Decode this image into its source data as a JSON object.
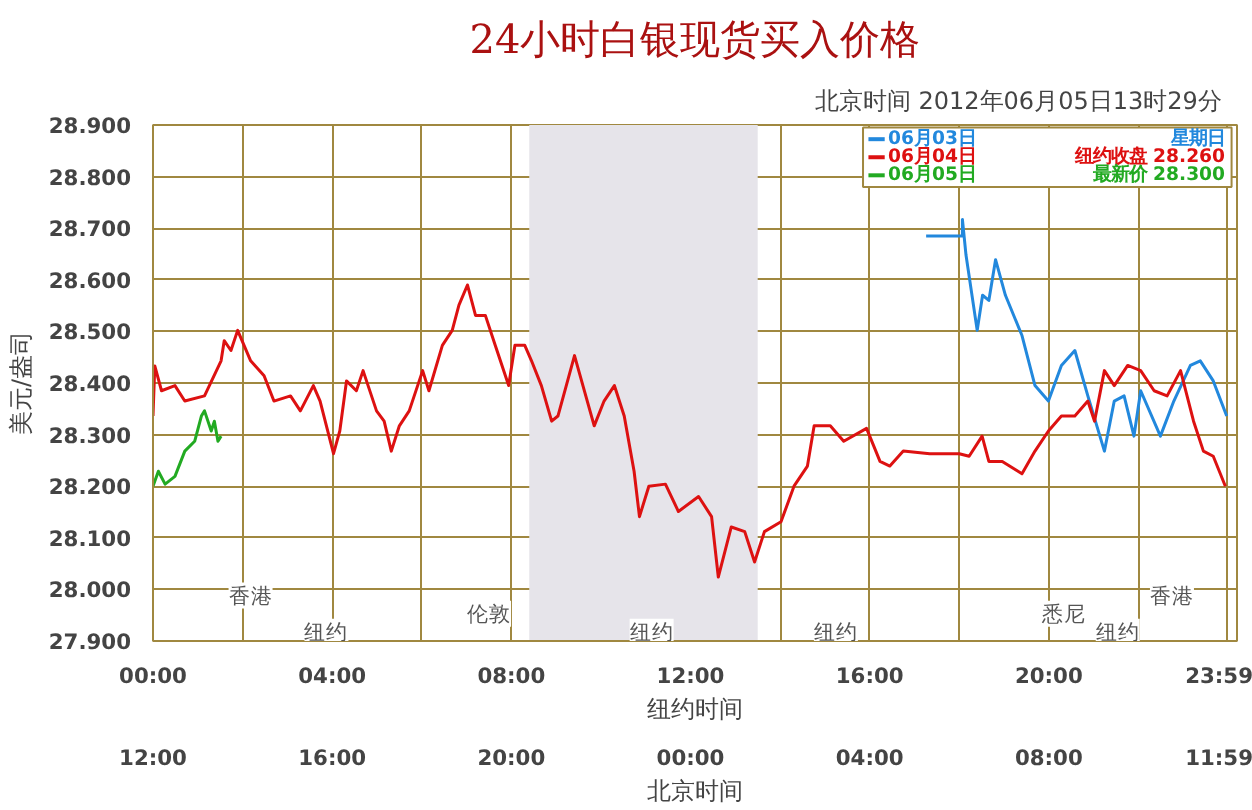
{
  "chart_data": {
    "type": "line",
    "title": "24小时白银现货买入价格",
    "subtitle": "北京时间   2012年06月05日13时29分",
    "ylabel": "美元/盎司",
    "xlabel": "纽约时间",
    "x2label": "北京时间",
    "xlim": [
      0,
      24.2
    ],
    "x2lim": [
      "2012-06-04T12:00",
      "2012-06-05T12:12"
    ],
    "ylim": [
      27.9,
      28.9
    ],
    "xticks": [
      {
        "value": 0,
        "label": "00:00"
      },
      {
        "value": 2,
        "label": null
      },
      {
        "value": 4,
        "label": "04:00"
      },
      {
        "value": 6,
        "label": null
      },
      {
        "value": 8,
        "label": "08:00"
      },
      {
        "value": 10,
        "label": null
      },
      {
        "value": 12,
        "label": "12:00"
      },
      {
        "value": 14,
        "label": null
      },
      {
        "value": 16,
        "label": "16:00"
      },
      {
        "value": 18,
        "label": null
      },
      {
        "value": 20,
        "label": "20:00"
      },
      {
        "value": 22,
        "label": null
      },
      {
        "value": 23.98,
        "label": "23:59"
      }
    ],
    "x2ticks": [
      {
        "value": "2012-06-04T12:00",
        "label": "12:00"
      },
      {
        "value": "2012-06-04T16:00",
        "label": "16:00"
      },
      {
        "value": "2012-06-04T20:00",
        "label": "20:00"
      },
      {
        "value": "2012-06-05T00:00",
        "label": "00:00"
      },
      {
        "value": "2012-06-05T04:00",
        "label": "04:00"
      },
      {
        "value": "2012-06-05T08:00",
        "label": "08:00"
      },
      {
        "value": "2012-06-05T11:59",
        "label": "11:59"
      }
    ],
    "yticks": [
      {
        "value": 27.9,
        "label": "27.900"
      },
      {
        "value": 28.0,
        "label": "28.000"
      },
      {
        "value": 28.1,
        "label": "28.100"
      },
      {
        "value": 28.2,
        "label": "28.200"
      },
      {
        "value": 28.3,
        "label": "28.300"
      },
      {
        "value": 28.4,
        "label": "28.400"
      },
      {
        "value": 28.5,
        "label": "28.500"
      },
      {
        "value": 28.6,
        "label": "28.600"
      },
      {
        "value": 28.7,
        "label": "28.700"
      },
      {
        "value": 28.8,
        "label": "28.800"
      },
      {
        "value": 28.9,
        "label": "28.900"
      }
    ],
    "grid": true,
    "legend": "top right",
    "bands": [
      {
        "axis": "x",
        "from": 8.4,
        "to": 13.5,
        "color": "#e6e4ea"
      }
    ],
    "series": [
      {
        "name": "06月03日",
        "color": "#2288dd",
        "x": [
          17.26,
          18.07,
          18.07,
          18.15,
          18.4,
          18.52,
          18.66,
          18.81,
          19.03,
          19.4,
          19.69,
          19.99,
          20.28,
          20.58,
          20.87,
          21.24,
          21.46,
          21.68,
          21.9,
          22.05,
          22.49,
          22.79,
          23.16,
          23.38,
          23.67,
          23.97
        ],
        "values": [
          28.685,
          28.685,
          28.717,
          28.648,
          28.502,
          28.57,
          28.56,
          28.639,
          28.57,
          28.492,
          28.395,
          28.365,
          28.434,
          28.463,
          28.375,
          28.268,
          28.365,
          28.375,
          28.297,
          28.385,
          28.297,
          28.365,
          28.434,
          28.443,
          28.404,
          28.336
        ]
      },
      {
        "name": "06月04日",
        "color": "#dd1111",
        "x": [
          0,
          0.04,
          0.19,
          0.49,
          0.71,
          1.15,
          1.52,
          1.59,
          1.74,
          1.89,
          2.18,
          2.48,
          2.7,
          3.07,
          3.29,
          3.58,
          3.73,
          4.03,
          4.17,
          4.32,
          4.54,
          4.69,
          4.99,
          5.16,
          5.32,
          5.5,
          5.72,
          6.02,
          6.16,
          6.46,
          6.68,
          6.83,
          7.02,
          7.2,
          7.42,
          7.64,
          7.94,
          8.08,
          8.3,
          8.45,
          8.67,
          8.9,
          9.04,
          9.41,
          9.85,
          10.07,
          10.3,
          10.52,
          10.74,
          10.86,
          11.07,
          11.44,
          11.73,
          12.18,
          12.47,
          12.62,
          12.91,
          13.21,
          13.43,
          13.65,
          14.02,
          14.31,
          14.61,
          14.76,
          15.12,
          15.42,
          15.93,
          16.23,
          16.45,
          16.75,
          17.34,
          18.0,
          18.22,
          18.51,
          18.66,
          18.96,
          19.4,
          19.69,
          19.99,
          20.28,
          20.58,
          20.87,
          21.02,
          21.24,
          21.46,
          21.76,
          22.05,
          22.35,
          22.64,
          22.94,
          23.23,
          23.45,
          23.67,
          23.94
        ],
        "values": [
          28.336,
          28.433,
          28.385,
          28.395,
          28.365,
          28.375,
          28.443,
          28.482,
          28.463,
          28.502,
          28.443,
          28.414,
          28.365,
          28.375,
          28.346,
          28.395,
          28.365,
          28.263,
          28.307,
          28.404,
          28.385,
          28.424,
          28.346,
          28.326,
          28.268,
          28.317,
          28.346,
          28.424,
          28.385,
          28.473,
          28.502,
          28.551,
          28.59,
          28.531,
          28.531,
          28.473,
          28.395,
          28.473,
          28.473,
          28.443,
          28.395,
          28.326,
          28.336,
          28.453,
          28.317,
          28.365,
          28.395,
          28.336,
          28.229,
          28.141,
          28.2,
          28.204,
          28.151,
          28.18,
          28.141,
          28.024,
          28.121,
          28.112,
          28.053,
          28.112,
          28.131,
          28.2,
          28.239,
          28.317,
          28.317,
          28.287,
          28.312,
          28.248,
          28.239,
          28.268,
          28.263,
          28.263,
          28.258,
          28.297,
          28.248,
          28.248,
          28.224,
          28.268,
          28.307,
          28.336,
          28.336,
          28.365,
          28.326,
          28.424,
          28.395,
          28.434,
          28.424,
          28.385,
          28.375,
          28.424,
          28.326,
          28.268,
          28.258,
          28.2
        ]
      },
      {
        "name": "06月05日",
        "color": "#22aa22",
        "x": [
          0,
          0.12,
          0.27,
          0.49,
          0.71,
          0.93,
          1.08,
          1.15,
          1.3,
          1.37,
          1.45,
          1.52
        ],
        "values": [
          28.2,
          28.229,
          28.204,
          28.219,
          28.268,
          28.287,
          28.336,
          28.346,
          28.307,
          28.326,
          28.287,
          28.297
        ]
      }
    ],
    "annotations": [
      "星期日",
      "纽约收盘 28.260",
      "最新价 28.300",
      "香港",
      "伦敦",
      "纽约",
      "纽约",
      "纽约",
      "悉尼",
      "香港",
      "纽约"
    ]
  }
}
